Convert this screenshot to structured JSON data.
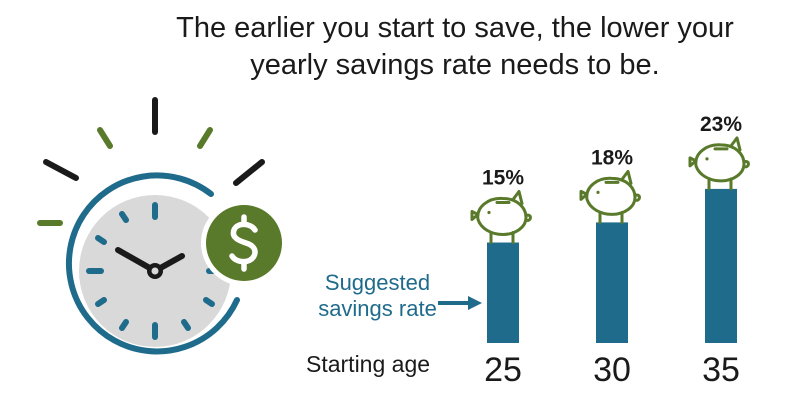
{
  "headline": {
    "line1": "The earlier you start to save, the lower your",
    "line2": "yearly savings rate needs to be."
  },
  "annotation": {
    "line1": "Suggested",
    "line2": "savings rate"
  },
  "x_axis_label": "Starting age",
  "icons": {
    "clock": "stopwatch-icon",
    "dollar": "dollar-coin-icon",
    "bank": "piggy-bank-icon"
  },
  "colors": {
    "bar": "#1f6b8c",
    "green": "#5a7a2b",
    "clock_face": "#d9d9d9",
    "rays": "#1a1a1a"
  },
  "chart_data": {
    "type": "bar",
    "categories": [
      "25",
      "30",
      "35"
    ],
    "values": [
      15,
      18,
      23
    ],
    "value_labels": [
      "15%",
      "18%",
      "23%"
    ],
    "xlabel": "Starting age",
    "ylabel": "",
    "ylim": [
      0,
      23
    ]
  }
}
